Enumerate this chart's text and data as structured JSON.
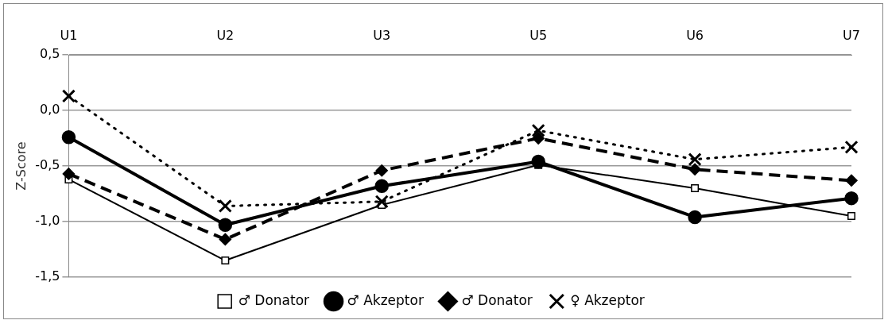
{
  "chart_data": {
    "type": "line",
    "ylabel": "Z-Score",
    "categories": [
      "U1",
      "U2",
      "U3",
      "U5",
      "U6",
      "U7"
    ],
    "ylim": [
      -1.5,
      0.5
    ],
    "yticks": [
      {
        "value": -1.5,
        "label": "-1,5"
      },
      {
        "value": -1,
        "label": "-1,0"
      },
      {
        "value": -0.5,
        "label": "-0,5"
      },
      {
        "value": 0,
        "label": "0,0"
      },
      {
        "value": 0.5,
        "label": "0,5"
      }
    ],
    "grid": "y",
    "legend": "bottom",
    "series": [
      {
        "name": "♂ Donator",
        "color": "#000000",
        "marker": "square",
        "line_style": "solid",
        "values": [
          -0.62,
          -1.35,
          -0.85,
          -0.49,
          -0.7,
          -0.95
        ]
      },
      {
        "name": "♂ Akzeptor",
        "color": "#000000",
        "marker": "circle",
        "line_style": "solid",
        "values": [
          -0.24,
          -1.03,
          -0.68,
          -0.46,
          -0.96,
          -0.79
        ]
      },
      {
        "name": "♂ Donator",
        "color": "#000000",
        "marker": "diamond",
        "line_style": "dashed",
        "values": [
          -0.57,
          -1.16,
          -0.54,
          -0.25,
          -0.53,
          -0.63
        ]
      },
      {
        "name": "♀ Akzeptor",
        "color": "#000000",
        "marker": "cross",
        "line_style": "dotted",
        "values": [
          0.13,
          -0.86,
          -0.82,
          -0.18,
          -0.44,
          -0.33
        ]
      }
    ]
  }
}
